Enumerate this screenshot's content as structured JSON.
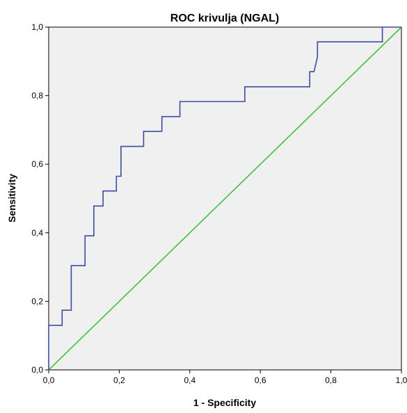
{
  "chart_data": {
    "type": "line",
    "title": "ROC krivulja (NGAL)",
    "xlabel": "1 - Specificity",
    "ylabel": "Sensitivity",
    "xlim": [
      0,
      1
    ],
    "ylim": [
      0,
      1
    ],
    "x_ticks": [
      "0,0",
      "0,2",
      "0,4",
      "0,6",
      "0,8",
      "1,0"
    ],
    "y_ticks": [
      "0,0",
      "0,2",
      "0,4",
      "0,6",
      "0,8",
      "1,0"
    ],
    "grid": false,
    "legend": "none",
    "background_color": "#f0f0f0",
    "series": [
      {
        "color": "#3c4c9c",
        "points": [
          [
            0.0,
            0.0
          ],
          [
            0.0,
            0.13
          ],
          [
            0.038,
            0.13
          ],
          [
            0.038,
            0.174
          ],
          [
            0.064,
            0.174
          ],
          [
            0.064,
            0.304
          ],
          [
            0.103,
            0.304
          ],
          [
            0.103,
            0.391
          ],
          [
            0.128,
            0.391
          ],
          [
            0.128,
            0.478
          ],
          [
            0.154,
            0.478
          ],
          [
            0.154,
            0.522
          ],
          [
            0.192,
            0.522
          ],
          [
            0.192,
            0.565
          ],
          [
            0.205,
            0.565
          ],
          [
            0.205,
            0.652
          ],
          [
            0.269,
            0.652
          ],
          [
            0.269,
            0.696
          ],
          [
            0.321,
            0.696
          ],
          [
            0.321,
            0.739
          ],
          [
            0.372,
            0.739
          ],
          [
            0.372,
            0.783
          ],
          [
            0.556,
            0.783
          ],
          [
            0.556,
            0.826
          ],
          [
            0.74,
            0.826
          ],
          [
            0.74,
            0.87
          ],
          [
            0.752,
            0.87
          ],
          [
            0.762,
            0.913
          ],
          [
            0.762,
            0.957
          ],
          [
            0.946,
            0.957
          ],
          [
            0.946,
            1.0
          ],
          [
            1.0,
            1.0
          ]
        ]
      },
      {
        "color": "#3cc43c",
        "points": [
          [
            0.0,
            0.0
          ],
          [
            1.0,
            1.0
          ]
        ]
      }
    ]
  }
}
